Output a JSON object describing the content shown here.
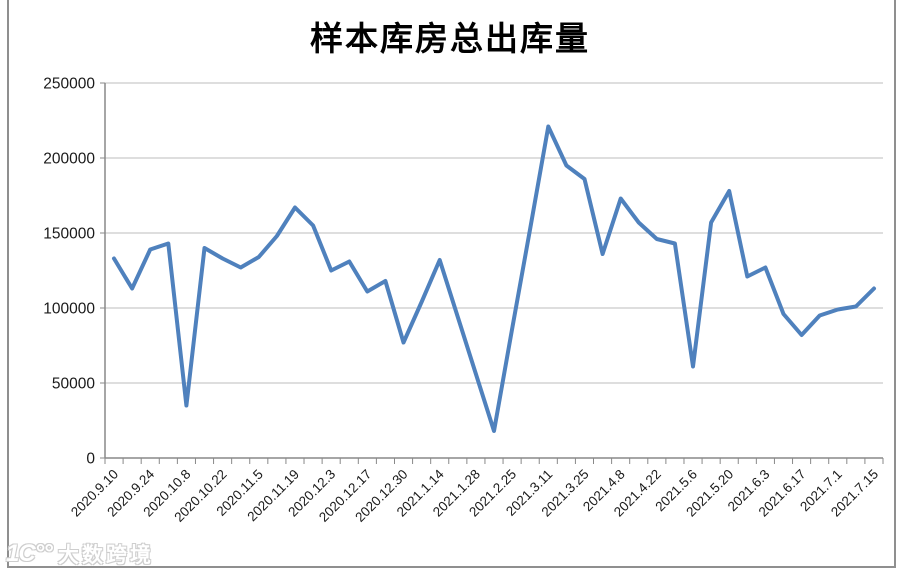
{
  "chart_data": {
    "type": "line",
    "title": "样本库房总出库量",
    "series": [
      {
        "name": "样本库房总出库量",
        "values": [
          133000,
          113000,
          139000,
          143000,
          35000,
          140000,
          133000,
          127000,
          134000,
          148000,
          167000,
          155000,
          125000,
          131000,
          111000,
          118000,
          77000,
          104000,
          132000,
          94000,
          56000,
          18000,
          86000,
          153000,
          221000,
          195000,
          186000,
          136000,
          173000,
          157000,
          146000,
          143000,
          61000,
          157000,
          178000,
          121000,
          127000,
          96000,
          82000,
          95000,
          99000,
          101000,
          113000
        ]
      }
    ],
    "n_points": 43,
    "x_tick_labels": [
      "2020.9.10",
      "2020.9.24",
      "2020.10.8",
      "2020.10.22",
      "2020.11.5",
      "2020.11.19",
      "2020.12.3",
      "2020.12.17",
      "2020.12.30",
      "2021.1.14",
      "2021.1.28",
      "2021.2.25",
      "2021.3.11",
      "2021.3.25",
      "2021.4.8",
      "2021.4.22",
      "2021.5.6",
      "2021.5.20",
      "2021.6.3",
      "2021.6.17",
      "2021.7.1",
      "2021.7.15"
    ],
    "x_label_every_n_points": 2,
    "y_ticks": [
      0,
      50000,
      100000,
      150000,
      200000,
      250000
    ],
    "y_tick_labels": [
      "0",
      "50000",
      "100000",
      "150000",
      "200000",
      "250000"
    ],
    "ylim": [
      0,
      250000
    ],
    "grid": "horizontal",
    "legend": "none",
    "line_color": "#4f81bd",
    "grid_color": "#bdbdbd",
    "axis_color": "#898989",
    "label_color": "#1a1a1a",
    "background": "#ffffff"
  },
  "watermark": {
    "logo": "10100-brand-logo",
    "logo_glyph": "1C°°",
    "text": "大数跨境"
  }
}
